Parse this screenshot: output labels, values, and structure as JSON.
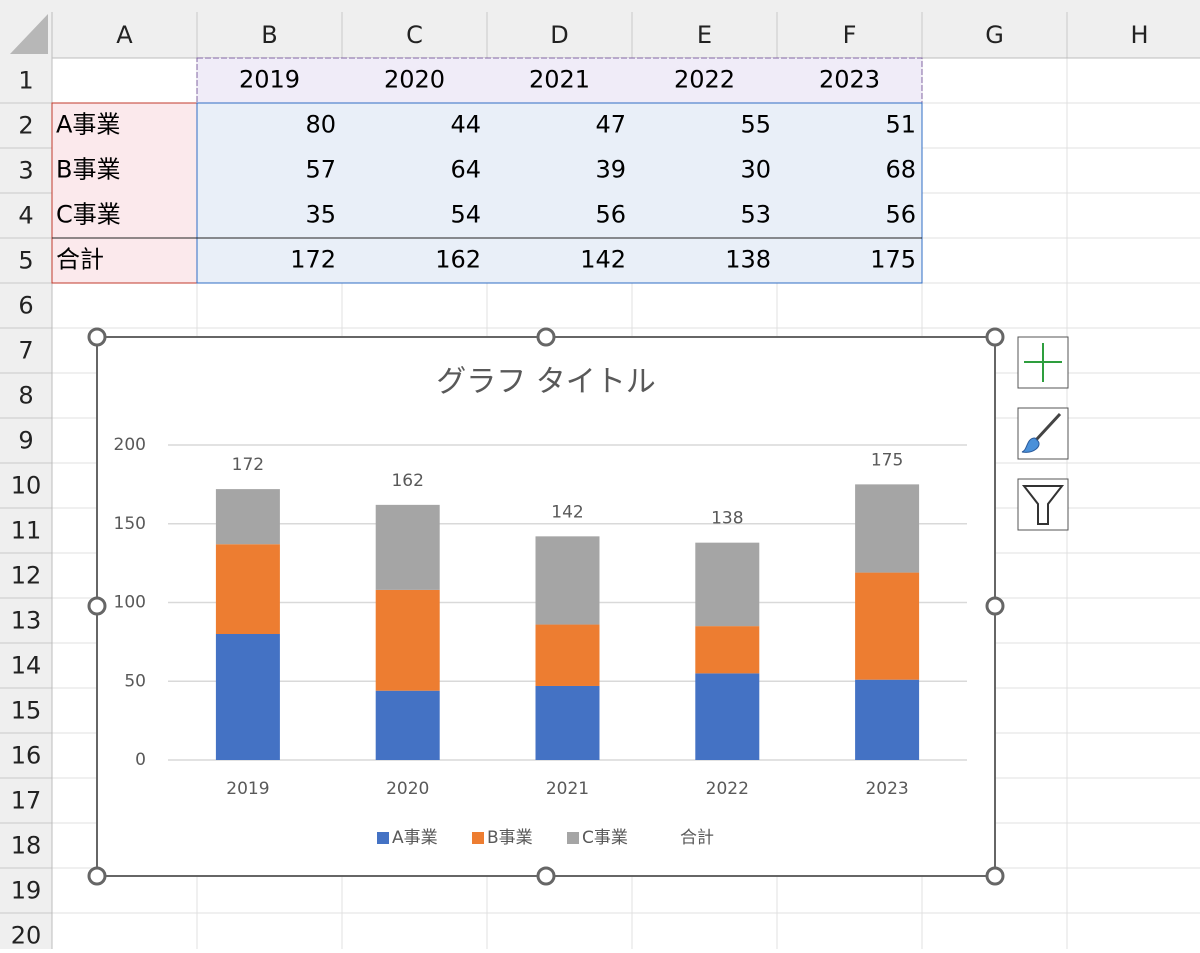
{
  "spreadsheet": {
    "columns": [
      "A",
      "B",
      "C",
      "D",
      "E",
      "F",
      "G",
      "H"
    ],
    "rows": [
      1,
      2,
      3,
      4,
      5,
      6,
      7,
      8,
      9,
      10,
      11,
      12,
      13,
      14,
      15,
      16,
      17,
      18,
      19,
      20
    ],
    "table": {
      "header": [
        2019,
        2020,
        2021,
        2022,
        2023
      ],
      "rows": [
        {
          "label": "A事業",
          "values": [
            80,
            44,
            47,
            55,
            51
          ]
        },
        {
          "label": "B事業",
          "values": [
            57,
            64,
            39,
            30,
            68
          ]
        },
        {
          "label": "C事業",
          "values": [
            35,
            54,
            56,
            53,
            56
          ]
        },
        {
          "label": "合計",
          "values": [
            172,
            162,
            142,
            138,
            175
          ]
        }
      ]
    }
  },
  "chart_data": {
    "type": "stacked_bar",
    "title": "グラフ タイトル",
    "categories": [
      "2019",
      "2020",
      "2021",
      "2022",
      "2023"
    ],
    "series": [
      {
        "name": "A事業",
        "color": "#4472c4",
        "values": [
          80,
          44,
          47,
          55,
          51
        ]
      },
      {
        "name": "B事業",
        "color": "#ed7d31",
        "values": [
          57,
          64,
          39,
          30,
          68
        ]
      },
      {
        "name": "C事業",
        "color": "#a5a5a5",
        "values": [
          35,
          54,
          56,
          53,
          56
        ]
      }
    ],
    "totals": {
      "name": "合計",
      "values": [
        172,
        162,
        142,
        138,
        175
      ]
    },
    "ylim": [
      0,
      200
    ],
    "yticks": [
      0,
      50,
      100,
      150,
      200
    ],
    "grid": true,
    "legend": "bottom"
  }
}
